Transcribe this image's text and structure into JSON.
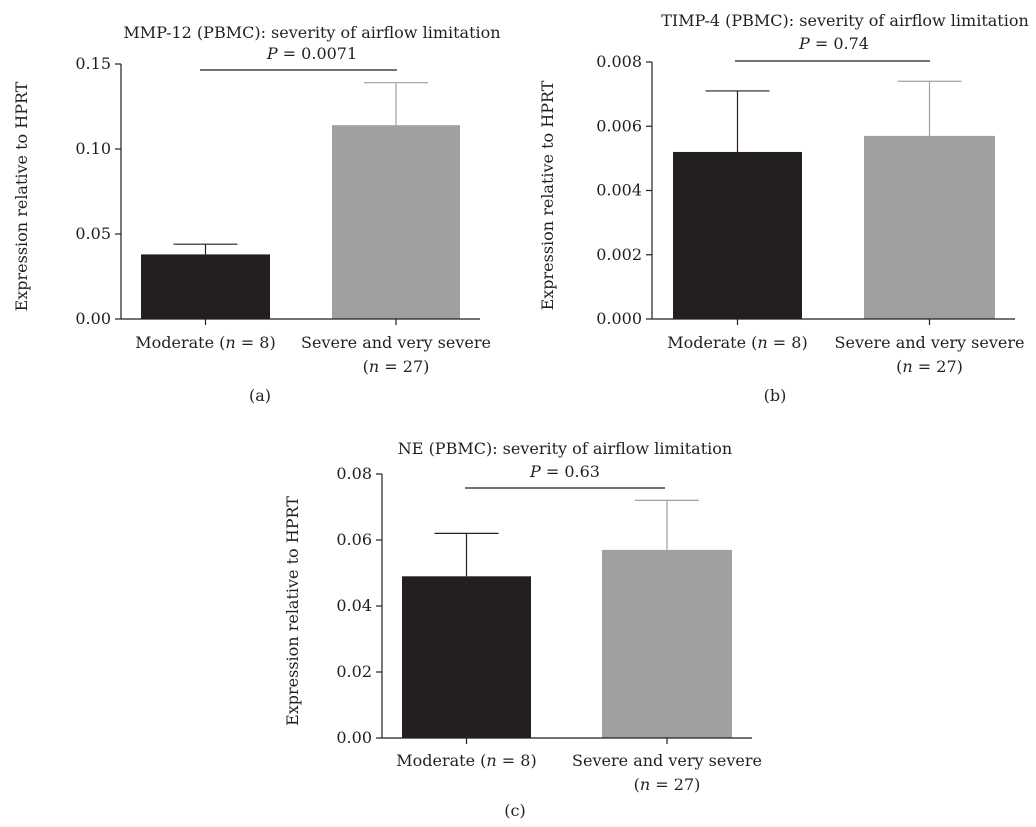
{
  "chart_data": [
    {
      "type": "bar",
      "title": "MMP-12 (PBMC): severity of airflow limitation",
      "ylabel": "Expression relative to HPRT",
      "categories": [
        "Moderate (n = 8)",
        "Severe and very severe (n = 27)"
      ],
      "category_lines": [
        [
          "Moderate (",
          "n",
          " = 8)"
        ],
        [
          "Severe and very severe"
        ],
        [
          "(",
          "n",
          " = 27)"
        ]
      ],
      "values": [
        0.038,
        0.114
      ],
      "errors": [
        0.006,
        0.025
      ],
      "bar_colors": [
        "#231f20",
        "#a0a0a0"
      ],
      "ylim": [
        0,
        0.15
      ],
      "yticks": [
        "0.00",
        "0.05",
        "0.10",
        "0.15"
      ],
      "p_label": "P",
      "p_value": " = 0.0071",
      "panel_label": "(a)"
    },
    {
      "type": "bar",
      "title": "TIMP-4 (PBMC): severity of airflow limitation",
      "ylabel": "Expression relative to HPRT",
      "categories": [
        "Moderate (n = 8)",
        "Severe and very severe (n = 27)"
      ],
      "values": [
        0.0052,
        0.0057
      ],
      "errors": [
        0.0019,
        0.0017
      ],
      "bar_colors": [
        "#231f20",
        "#a0a0a0"
      ],
      "ylim": [
        0,
        0.008
      ],
      "yticks": [
        "0.000",
        "0.002",
        "0.004",
        "0.006",
        "0.008"
      ],
      "p_label": "P",
      "p_value": " = 0.74",
      "panel_label": "(b)"
    },
    {
      "type": "bar",
      "title": "NE (PBMC): severity of airflow limitation",
      "ylabel": "Expression relative to HPRT",
      "categories": [
        "Moderate (n = 8)",
        "Severe and very severe (n = 27)"
      ],
      "values": [
        0.049,
        0.057
      ],
      "errors": [
        0.013,
        0.015
      ],
      "bar_colors": [
        "#231f20",
        "#a0a0a0"
      ],
      "ylim": [
        0,
        0.08
      ],
      "yticks": [
        "0.00",
        "0.02",
        "0.04",
        "0.06",
        "0.08"
      ],
      "p_label": "P",
      "p_value": " = 0.63",
      "panel_label": "(c)"
    }
  ]
}
